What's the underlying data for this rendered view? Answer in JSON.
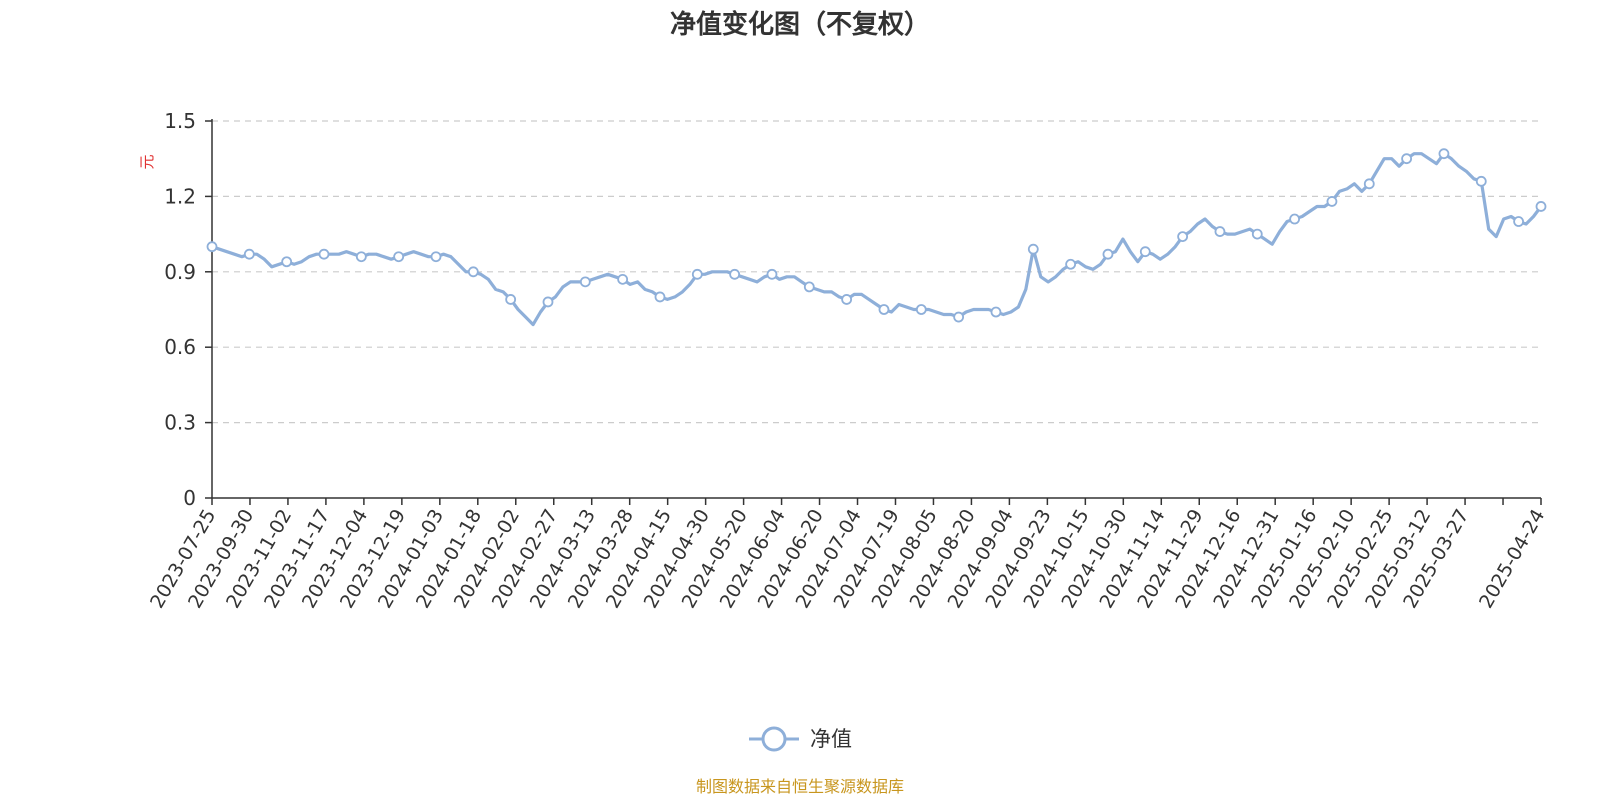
{
  "chart_data": {
    "type": "line",
    "title": "净值变化图（不复权）",
    "ylabel": "元",
    "ylim": [
      0,
      1.5
    ],
    "yticks": [
      "0",
      "0.3",
      "0.6",
      "0.9",
      "1.2",
      "1.5"
    ],
    "grid": true,
    "legend_position": "bottom-center",
    "xticks": [
      "2023-07-25",
      "2023-09-30",
      "2023-11-02",
      "2023-11-17",
      "2023-12-04",
      "2023-12-19",
      "2024-01-03",
      "2024-01-18",
      "2024-02-02",
      "2024-02-27",
      "2024-03-13",
      "2024-03-28",
      "2024-04-15",
      "2024-04-30",
      "2024-05-20",
      "2024-06-04",
      "2024-06-20",
      "2024-07-04",
      "2024-07-19",
      "2024-08-05",
      "2024-08-20",
      "2024-09-04",
      "2024-09-23",
      "2024-10-15",
      "2024-10-30",
      "2024-11-14",
      "2024-11-29",
      "2024-12-16",
      "2024-12-31",
      "2025-01-16",
      "2025-02-10",
      "2025-02-25",
      "2025-03-12",
      "2025-03-27",
      "",
      "2025-04-24"
    ],
    "series": [
      {
        "name": "净值",
        "color": "#8eafd9",
        "values": [
          1.0,
          0.99,
          0.98,
          0.97,
          0.96,
          0.97,
          0.97,
          0.95,
          0.92,
          0.93,
          0.94,
          0.93,
          0.94,
          0.96,
          0.97,
          0.97,
          0.97,
          0.97,
          0.98,
          0.97,
          0.96,
          0.97,
          0.97,
          0.96,
          0.95,
          0.96,
          0.97,
          0.98,
          0.97,
          0.96,
          0.96,
          0.97,
          0.96,
          0.93,
          0.9,
          0.9,
          0.89,
          0.87,
          0.83,
          0.82,
          0.79,
          0.75,
          0.72,
          0.69,
          0.74,
          0.78,
          0.8,
          0.84,
          0.86,
          0.86,
          0.86,
          0.87,
          0.88,
          0.89,
          0.88,
          0.87,
          0.85,
          0.86,
          0.83,
          0.82,
          0.8,
          0.79,
          0.8,
          0.82,
          0.85,
          0.89,
          0.89,
          0.9,
          0.9,
          0.9,
          0.89,
          0.88,
          0.87,
          0.86,
          0.88,
          0.89,
          0.87,
          0.88,
          0.88,
          0.86,
          0.84,
          0.83,
          0.82,
          0.82,
          0.8,
          0.79,
          0.81,
          0.81,
          0.79,
          0.77,
          0.75,
          0.74,
          0.77,
          0.76,
          0.75,
          0.75,
          0.75,
          0.74,
          0.73,
          0.73,
          0.72,
          0.74,
          0.75,
          0.75,
          0.75,
          0.74,
          0.73,
          0.74,
          0.76,
          0.83,
          0.99,
          0.88,
          0.86,
          0.88,
          0.91,
          0.93,
          0.94,
          0.92,
          0.91,
          0.93,
          0.97,
          0.98,
          1.03,
          0.98,
          0.94,
          0.98,
          0.97,
          0.95,
          0.97,
          1.0,
          1.04,
          1.06,
          1.09,
          1.11,
          1.08,
          1.06,
          1.05,
          1.05,
          1.06,
          1.07,
          1.05,
          1.03,
          1.01,
          1.06,
          1.1,
          1.11,
          1.12,
          1.14,
          1.16,
          1.16,
          1.18,
          1.22,
          1.23,
          1.25,
          1.22,
          1.25,
          1.3,
          1.35,
          1.35,
          1.32,
          1.35,
          1.37,
          1.37,
          1.35,
          1.33,
          1.37,
          1.35,
          1.32,
          1.3,
          1.27,
          1.26,
          1.07,
          1.04,
          1.11,
          1.12,
          1.1,
          1.09,
          1.12,
          1.16
        ]
      }
    ]
  },
  "legend": {
    "label": "净值"
  },
  "source": "制图数据来自恒生聚源数据库",
  "colors": {
    "line": "#8eafd9",
    "grid": "#cccccc",
    "source": "#c8961e",
    "unit": "#e03030"
  }
}
